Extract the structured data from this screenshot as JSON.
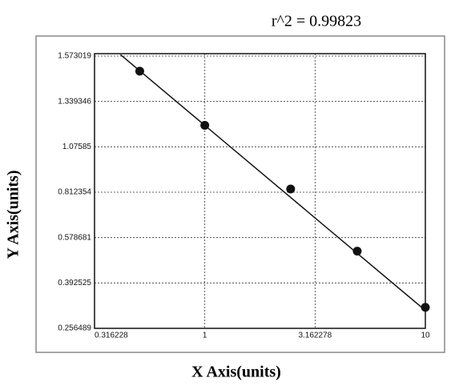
{
  "chart_data": {
    "type": "scatter",
    "title": "r^2  =  0.99823",
    "x_label": "X Axis(units)",
    "y_label": "Y Axis(units)",
    "x": [
      0.507,
      1,
      2.45,
      4.91,
      10
    ],
    "y": [
      1.495,
      1.2007,
      0.831,
      0.523,
      0.3196
    ],
    "color": "#111111",
    "fit": {
      "x": [
        0.415,
        10
      ],
      "y": [
        1.58,
        0.31
      ]
    },
    "x_log": true,
    "xlim": [
      0.316228,
      10
    ],
    "xticks": [
      0.316228,
      1,
      3.162278,
      10
    ],
    "ylim": [
      0.256489,
      1.573019
    ],
    "yticks": [
      0.256489,
      0.392525,
      0.578681,
      0.812354,
      1.07585,
      1.339346,
      1.573019
    ],
    "grid": true
  }
}
